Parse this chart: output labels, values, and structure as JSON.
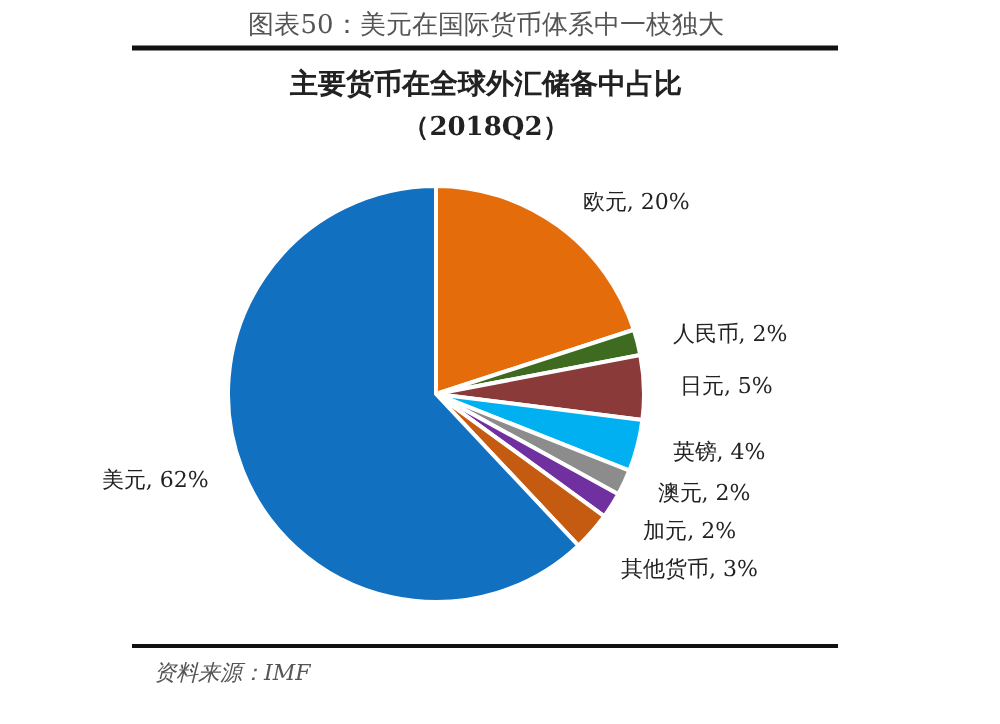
{
  "chart_data": {
    "type": "pie",
    "title": "主要货币在全球外汇储备中占比",
    "subtitle": "（2018Q2）",
    "categories": [
      "欧元",
      "人民币",
      "日元",
      "英镑",
      "澳元",
      "加元",
      "其他货币",
      "美元"
    ],
    "values": [
      20,
      2,
      5,
      4,
      2,
      2,
      3,
      62
    ],
    "value_labels": [
      ", 20%",
      ", 2%",
      ", 5%",
      ", 4%",
      ", 2%",
      ", 2%",
      ", 3%",
      ", 62%"
    ],
    "colors": [
      "#e46c0a",
      "#3e6b20",
      "#8b3a3a",
      "#00b0f0",
      "#8c8c8c",
      "#7030a0",
      "#c55a11",
      "#1170c0"
    ],
    "annotations": [
      "图表50：美元在国际货币体系中一枝独大",
      "资料来源：IMF"
    ]
  }
}
